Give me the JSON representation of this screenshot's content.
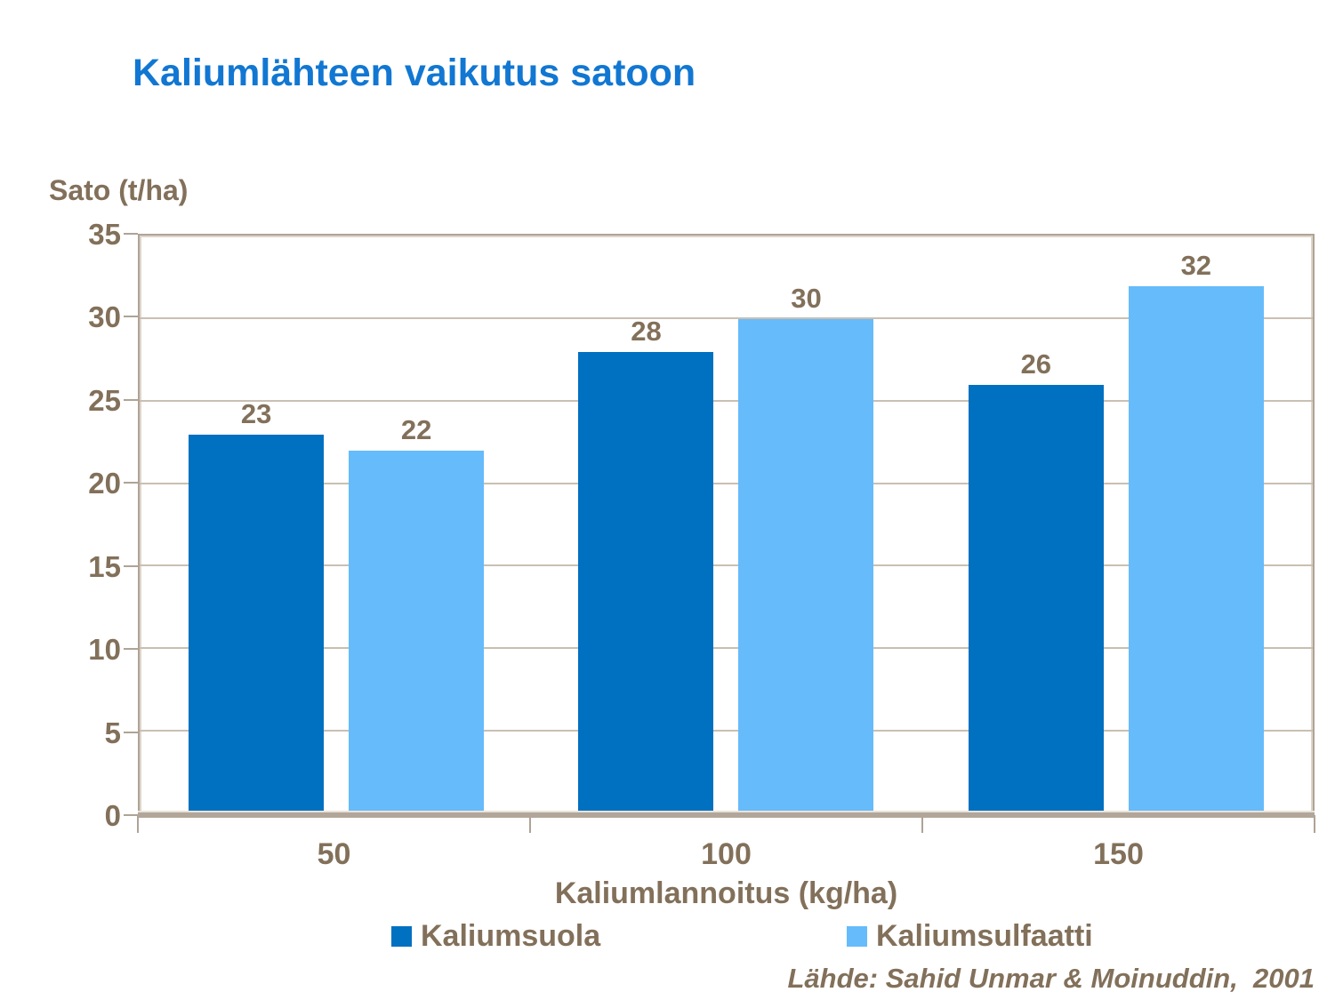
{
  "slide": {
    "source_note": "Lähde: Sahid Unmar & Moinuddin,  2001"
  },
  "chart_data": {
    "type": "bar",
    "title": "Kaliumlähteen vaikutus satoon",
    "ylabel": "Sato (t/ha)",
    "xlabel": "Kaliumlannoitus (kg/ha)",
    "categories": [
      "50",
      "100",
      "150"
    ],
    "series": [
      {
        "name": "Kaliumsuola",
        "color": "#0070C0",
        "values": [
          23,
          28,
          26
        ]
      },
      {
        "name": "Kaliumsulfaatti",
        "color": "#66BBFA",
        "values": [
          22,
          30,
          32
        ]
      }
    ],
    "ylim": [
      0,
      35
    ],
    "yticks": [
      0,
      5,
      10,
      15,
      20,
      25,
      30,
      35
    ],
    "grid": true,
    "data_labels": true,
    "legend_position": "bottom"
  },
  "colors": {
    "title_text": "#1177D2",
    "axis_text": "#82705A",
    "axis_frame": "#AFA396",
    "axis_frame_highlight": "#DDD5CA",
    "gridline": "#C9BFB2",
    "series_1": "#0070C0",
    "series_2": "#66BBFA"
  }
}
